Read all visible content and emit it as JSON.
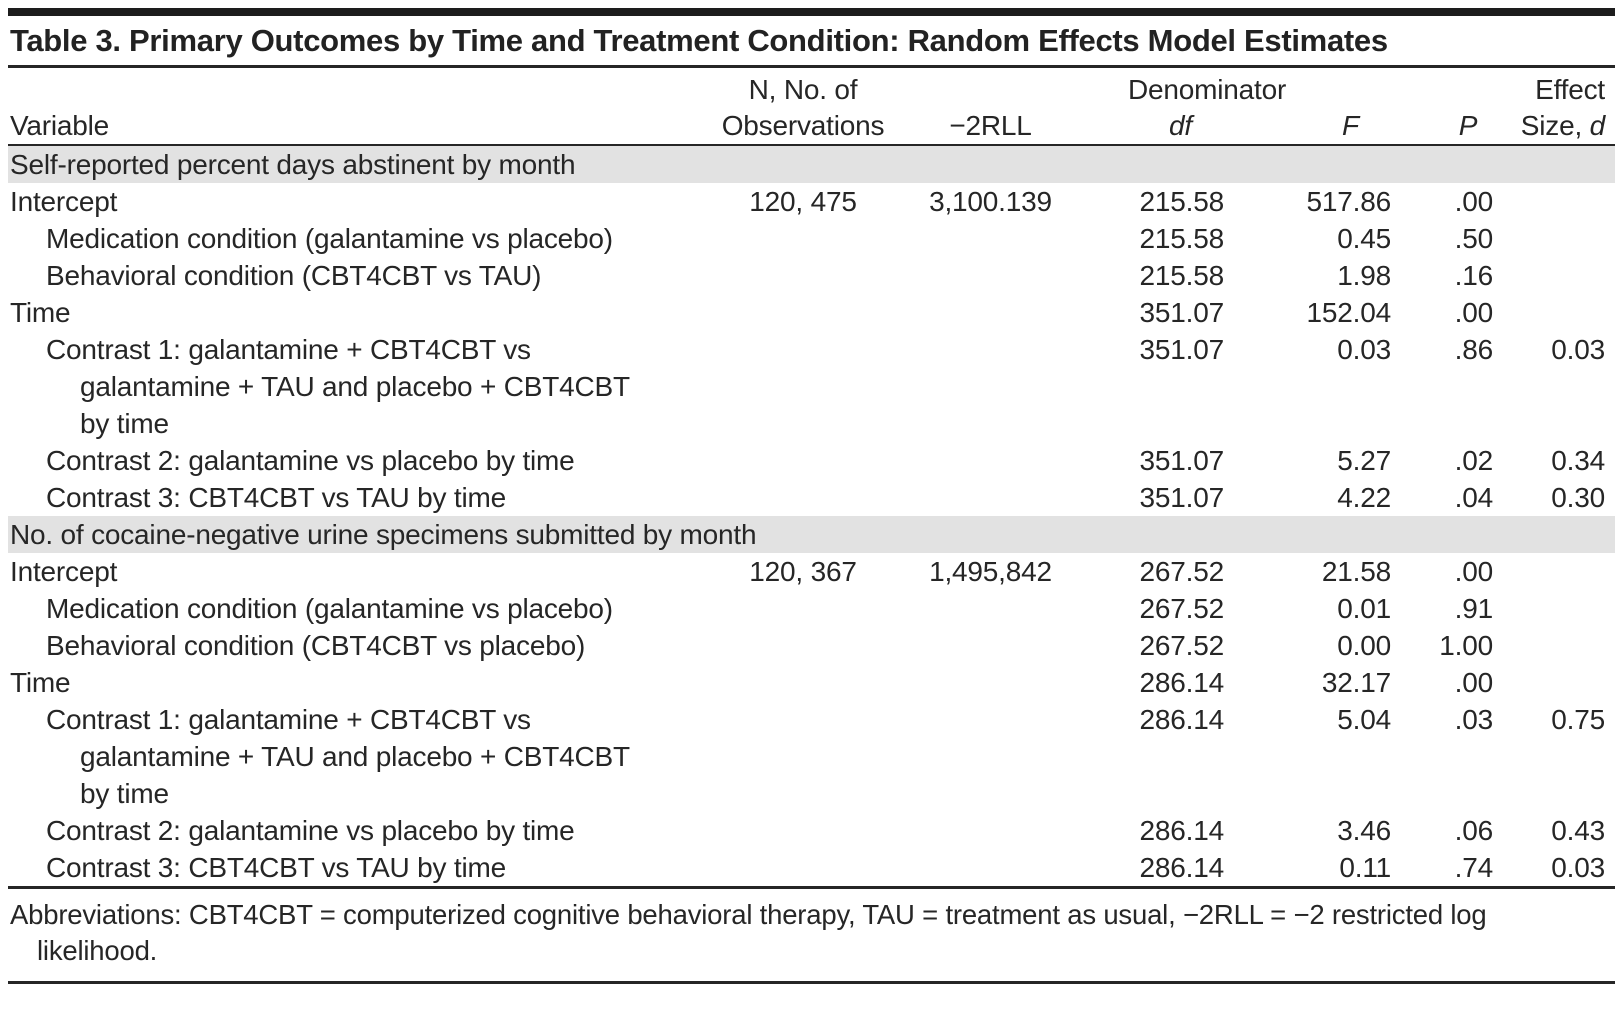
{
  "title": "Table 3. Primary Outcomes by Time and Treatment Condition: Random Effects Model Estimates",
  "header": {
    "variable": "Variable",
    "n_line1": "N, No. of",
    "n_line2": "Observations",
    "rll": "−2RLL",
    "df_line1": "Denominator",
    "df_line2": "df",
    "f": "F",
    "p": "P",
    "effect_line1": "Effect",
    "effect_line2_text": "Size, ",
    "effect_line2_var": "d"
  },
  "sections": [
    {
      "header": "Self-reported percent days abstinent by month",
      "rows": [
        {
          "label": "Intercept",
          "n": "120, 475",
          "rll": "3,100.139",
          "df": "215.58",
          "f": "517.86",
          "p": ".00",
          "d": ""
        },
        {
          "label": "Medication condition (galantamine vs placebo)",
          "n": "",
          "rll": "",
          "df": "215.58",
          "f": "0.45",
          "p": ".50",
          "d": ""
        },
        {
          "label": "Behavioral condition (CBT4CBT vs TAU)",
          "n": "",
          "rll": "",
          "df": "215.58",
          "f": "1.98",
          "p": ".16",
          "d": ""
        },
        {
          "label": "Time",
          "n": "",
          "rll": "",
          "df": "351.07",
          "f": "152.04",
          "p": ".00",
          "d": ""
        },
        {
          "label": "Contrast 1: galantamine + CBT4CBT vs",
          "label2": "galantamine + TAU and placebo + CBT4CBT",
          "label3": "by time",
          "n": "",
          "rll": "",
          "df": "351.07",
          "f": "0.03",
          "p": ".86",
          "d": "0.03"
        },
        {
          "label": "Contrast 2: galantamine vs placebo by time",
          "n": "",
          "rll": "",
          "df": "351.07",
          "f": "5.27",
          "p": ".02",
          "d": "0.34"
        },
        {
          "label": "Contrast 3: CBT4CBT vs TAU by time",
          "n": "",
          "rll": "",
          "df": "351.07",
          "f": "4.22",
          "p": ".04",
          "d": "0.30"
        }
      ]
    },
    {
      "header": "No. of cocaine-negative urine specimens submitted by month",
      "rows": [
        {
          "label": "Intercept",
          "n": "120, 367",
          "rll": "1,495,842",
          "df": "267.52",
          "f": "21.58",
          "p": ".00",
          "d": ""
        },
        {
          "label": "Medication condition (galantamine vs placebo)",
          "n": "",
          "rll": "",
          "df": "267.52",
          "f": "0.01",
          "p": ".91",
          "d": ""
        },
        {
          "label": "Behavioral condition (CBT4CBT vs placebo)",
          "n": "",
          "rll": "",
          "df": "267.52",
          "f": "0.00",
          "p": "1.00",
          "d": ""
        },
        {
          "label": "Time",
          "n": "",
          "rll": "",
          "df": "286.14",
          "f": "32.17",
          "p": ".00",
          "d": ""
        },
        {
          "label": "Contrast 1: galantamine + CBT4CBT vs",
          "label2": "galantamine + TAU and placebo + CBT4CBT",
          "label3": "by time",
          "n": "",
          "rll": "",
          "df": "286.14",
          "f": "5.04",
          "p": ".03",
          "d": "0.75"
        },
        {
          "label": "Contrast 2: galantamine vs placebo by time",
          "n": "",
          "rll": "",
          "df": "286.14",
          "f": "3.46",
          "p": ".06",
          "d": "0.43"
        },
        {
          "label": "Contrast 3: CBT4CBT vs TAU by time",
          "n": "",
          "rll": "",
          "df": "286.14",
          "f": "0.11",
          "p": ".74",
          "d": "0.03"
        }
      ]
    }
  ],
  "footnote": {
    "line1": "Abbreviations: CBT4CBT = computerized cognitive behavioral therapy, TAU = treatment as usual, −2RLL = −2 restricted log",
    "line2": "likelihood."
  }
}
